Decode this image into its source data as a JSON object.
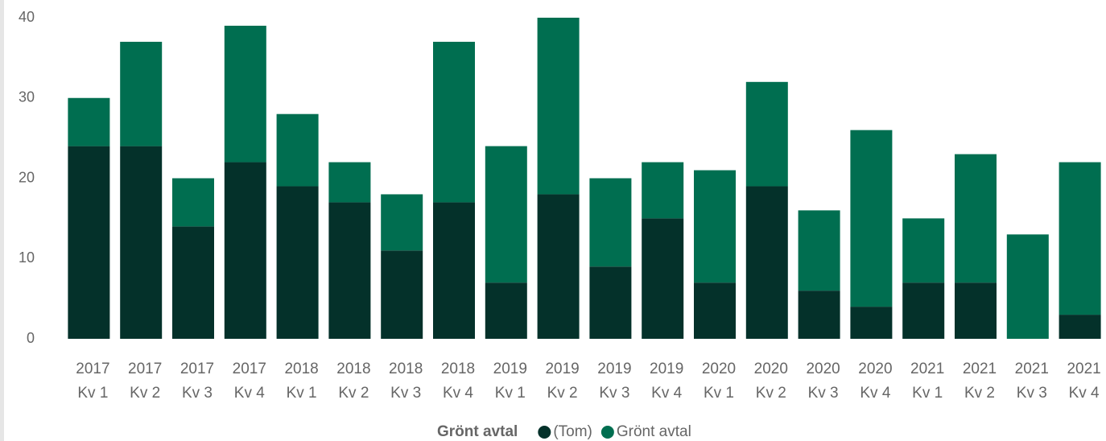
{
  "chart_data": {
    "type": "stacked_bar",
    "categories": [
      "2017 Kv 1",
      "2017 Kv 2",
      "2017 Kv 3",
      "2017 Kv 4",
      "2018 Kv 1",
      "2018 Kv 2",
      "2018 Kv 3",
      "2018 Kv 4",
      "2019 Kv 1",
      "2019 Kv 2",
      "2019 Kv 3",
      "2019 Kv 4",
      "2020 Kv 1",
      "2020 Kv 2",
      "2020 Kv 3",
      "2020 Kv 4",
      "2021 Kv 1",
      "2021 Kv 2",
      "2021 Kv 3",
      "2021 Kv 4"
    ],
    "series": [
      {
        "name": "(Tom)",
        "color": "#04312a",
        "values": [
          24,
          24,
          14,
          22,
          19,
          17,
          11,
          17,
          7,
          18,
          9,
          15,
          7,
          19,
          6,
          4,
          7,
          7,
          0,
          3
        ]
      },
      {
        "name": "Grönt avtal",
        "color": "#006e50",
        "values": [
          6,
          13,
          6,
          17,
          9,
          5,
          7,
          20,
          17,
          22,
          11,
          7,
          14,
          13,
          10,
          22,
          8,
          16,
          13,
          19
        ]
      }
    ],
    "legend_title": "Grönt avtal",
    "ylim": [
      0,
      40
    ],
    "yticks": [
      0,
      10,
      20,
      30,
      40
    ],
    "grid": false
  }
}
